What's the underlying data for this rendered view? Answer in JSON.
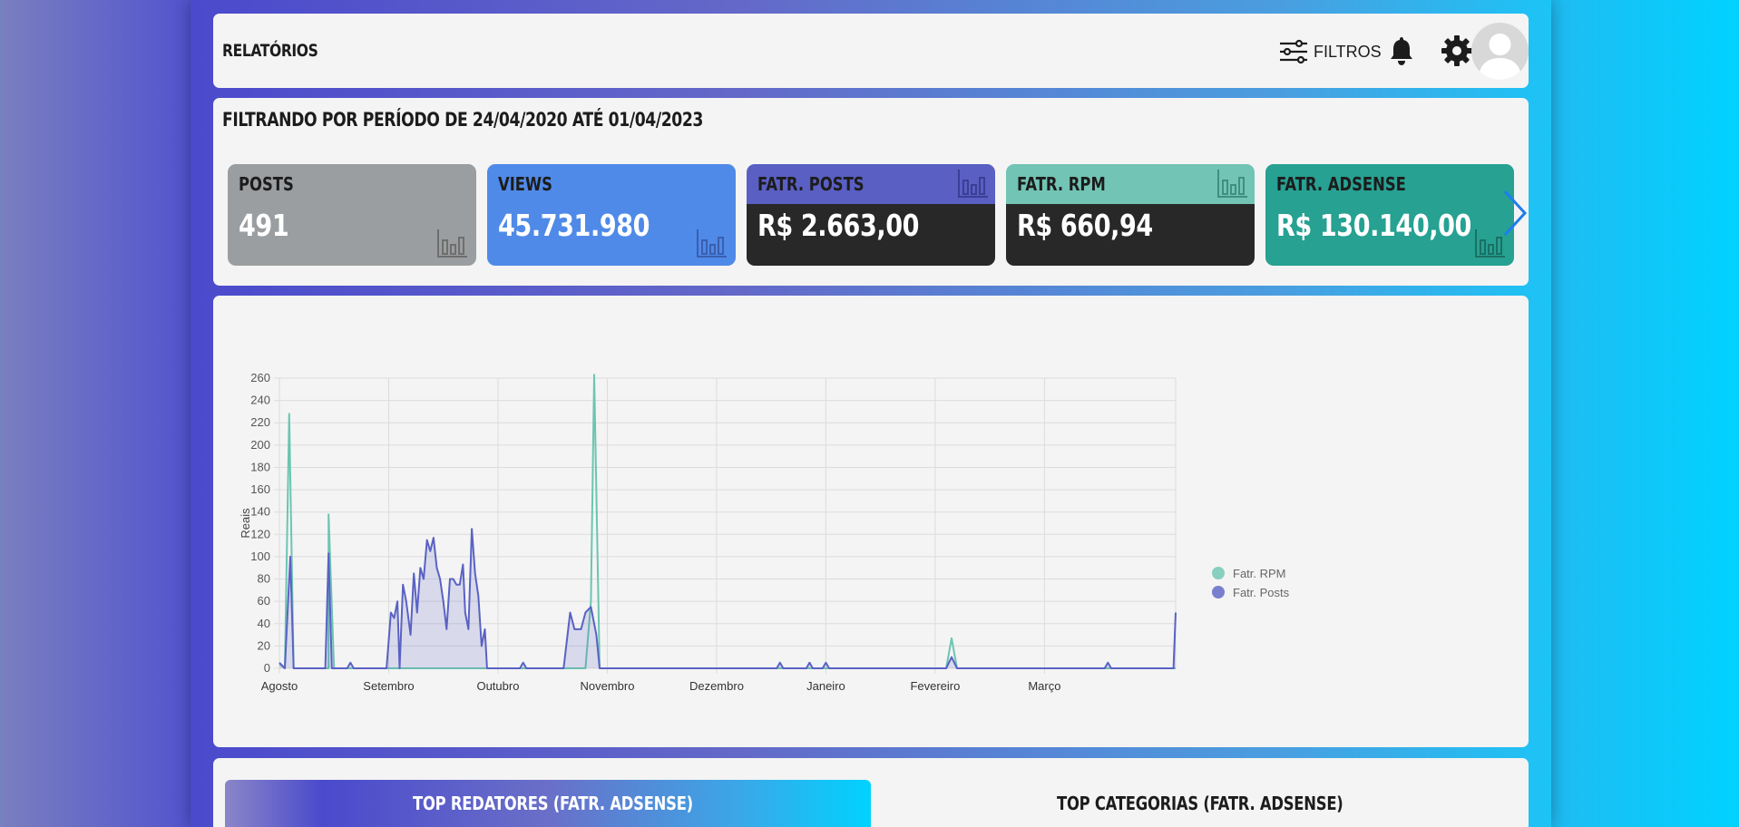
{
  "header": {
    "title": "RELATÓRIOS",
    "filters_label": "FILTROS"
  },
  "summary": {
    "period": "FILTRANDO POR PERÍODO DE 24/04/2020 ATÉ 01/04/2023",
    "stats": [
      {
        "label": "POSTS",
        "value": "491"
      },
      {
        "label": "VIEWS",
        "value": "45.731.980"
      },
      {
        "label": "FATR. POSTS",
        "value": "R$ 2.663,00"
      },
      {
        "label": "FATR. RPM",
        "value": "R$ 660,94"
      },
      {
        "label": "FATR. ADSENSE",
        "value": "R$ 130.140,00"
      }
    ]
  },
  "colors": {
    "rpm": "#6cc5b0",
    "posts": "#5a62c4",
    "posts_fill": "rgba(90,98,196,0.18)"
  },
  "chart_data": {
    "type": "line",
    "ylabel": "Reais",
    "xlabel": "",
    "ylim": [
      0,
      260
    ],
    "yticks": [
      0,
      20,
      40,
      60,
      80,
      100,
      120,
      140,
      160,
      180,
      200,
      220,
      240,
      260
    ],
    "xlim": [
      0,
      8.2
    ],
    "xticks": [
      {
        "label": "Agosto",
        "x": 0
      },
      {
        "label": "Setembro",
        "x": 1
      },
      {
        "label": "Outubro",
        "x": 2
      },
      {
        "label": "Novembro",
        "x": 3
      },
      {
        "label": "Dezembro",
        "x": 4
      },
      {
        "label": "Janeiro",
        "x": 5
      },
      {
        "label": "Fevereiro",
        "x": 6
      },
      {
        "label": "Março",
        "x": 7
      }
    ],
    "legend_position": "right",
    "series": [
      {
        "name": "Fatr. RPM",
        "points": [
          [
            0,
            4
          ],
          [
            0.05,
            0
          ],
          [
            0.09,
            228
          ],
          [
            0.13,
            0
          ],
          [
            0.45,
            0
          ],
          [
            0.45,
            138
          ],
          [
            0.5,
            0
          ],
          [
            2.8,
            0
          ],
          [
            2.85,
            60
          ],
          [
            2.88,
            263
          ],
          [
            2.93,
            0
          ],
          [
            6.1,
            0
          ],
          [
            6.15,
            27
          ],
          [
            6.2,
            0
          ],
          [
            8.2,
            0
          ]
        ]
      },
      {
        "name": "Fatr. Posts",
        "points": [
          [
            0,
            5
          ],
          [
            0.05,
            0
          ],
          [
            0.1,
            100
          ],
          [
            0.13,
            0
          ],
          [
            0.42,
            0
          ],
          [
            0.45,
            103
          ],
          [
            0.48,
            0
          ],
          [
            0.62,
            0
          ],
          [
            0.65,
            5
          ],
          [
            0.68,
            0
          ],
          [
            0.98,
            0
          ],
          [
            1.02,
            50
          ],
          [
            1.05,
            45
          ],
          [
            1.08,
            60
          ],
          [
            1.1,
            0
          ],
          [
            1.13,
            75
          ],
          [
            1.16,
            60
          ],
          [
            1.2,
            30
          ],
          [
            1.23,
            85
          ],
          [
            1.26,
            50
          ],
          [
            1.29,
            90
          ],
          [
            1.32,
            80
          ],
          [
            1.35,
            115
          ],
          [
            1.38,
            105
          ],
          [
            1.41,
            117
          ],
          [
            1.44,
            90
          ],
          [
            1.47,
            80
          ],
          [
            1.5,
            60
          ],
          [
            1.53,
            35
          ],
          [
            1.56,
            80
          ],
          [
            1.59,
            80
          ],
          [
            1.62,
            75
          ],
          [
            1.65,
            75
          ],
          [
            1.68,
            93
          ],
          [
            1.7,
            50
          ],
          [
            1.73,
            35
          ],
          [
            1.76,
            125
          ],
          [
            1.79,
            85
          ],
          [
            1.82,
            65
          ],
          [
            1.85,
            20
          ],
          [
            1.88,
            35
          ],
          [
            1.9,
            0
          ],
          [
            2.2,
            0
          ],
          [
            2.23,
            5
          ],
          [
            2.26,
            0
          ],
          [
            2.6,
            0
          ],
          [
            2.66,
            50
          ],
          [
            2.7,
            35
          ],
          [
            2.76,
            35
          ],
          [
            2.8,
            50
          ],
          [
            2.85,
            55
          ],
          [
            2.9,
            30
          ],
          [
            2.93,
            0
          ],
          [
            4.55,
            0
          ],
          [
            4.58,
            5
          ],
          [
            4.61,
            0
          ],
          [
            4.82,
            0
          ],
          [
            4.85,
            5
          ],
          [
            4.88,
            0
          ],
          [
            4.97,
            0
          ],
          [
            5.0,
            5
          ],
          [
            5.03,
            0
          ],
          [
            6.1,
            0
          ],
          [
            6.15,
            10
          ],
          [
            6.2,
            0
          ],
          [
            7.55,
            0
          ],
          [
            7.58,
            5
          ],
          [
            7.61,
            0
          ],
          [
            8.18,
            0
          ],
          [
            8.2,
            50
          ]
        ]
      }
    ]
  },
  "bottom": {
    "tab_active": "TOP REDATORES (FATR. ADSENSE)",
    "tab_inactive": "TOP CATEGORIAS (FATR. ADSENSE)"
  }
}
